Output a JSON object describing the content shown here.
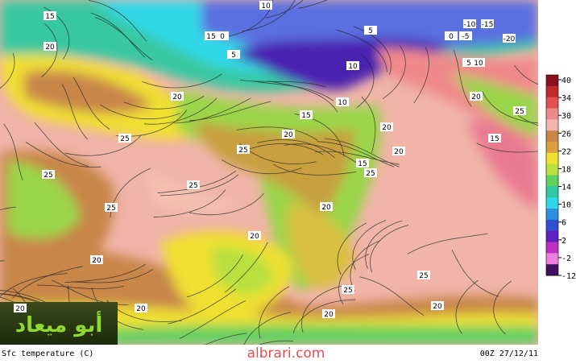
{
  "map": {
    "title": "Sfc temperature (C)",
    "site": "albrari.com",
    "timestamp": "00Z 27/12/11",
    "logo": "أبو ميعاد",
    "contour_labels": [
      "15",
      "20",
      "10",
      "15",
      "0",
      "5",
      "5",
      "-10",
      "-15",
      "0",
      "-5",
      "-20",
      "10",
      "5",
      "10",
      "20",
      "25",
      "10",
      "15",
      "20",
      "20",
      "25",
      "15",
      "25",
      "20",
      "25",
      "25",
      "25",
      "20",
      "20",
      "20",
      "25",
      "25",
      "20",
      "20",
      "20",
      "20",
      "25",
      "20",
      "15"
    ]
  },
  "colorbar": {
    "ticks": [
      40,
      34,
      30,
      26,
      22,
      18,
      14,
      10,
      6,
      2,
      -2,
      -12
    ],
    "colors": [
      "#8b1020",
      "#c02a2a",
      "#e05050",
      "#f08a8a",
      "#f4b6b0",
      "#c8864a",
      "#d8a040",
      "#f0e030",
      "#b8e040",
      "#60d060",
      "#30c8a0",
      "#30d8e8",
      "#3090e0",
      "#3050d0",
      "#6020c0",
      "#c030c0",
      "#f080e0",
      "#401060"
    ]
  }
}
